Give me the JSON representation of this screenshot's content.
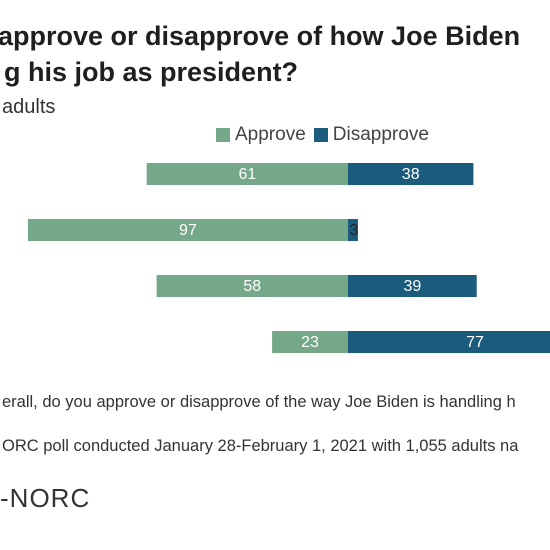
{
  "chart_data": {
    "type": "bar",
    "orientation": "horizontal-diverging",
    "title": "approve or disapprove of how Joe Biden g his job as president?",
    "title_lines": [
      "approve or disapprove of how Joe Biden",
      "g his job as president?"
    ],
    "subtitle": "adults",
    "categories": [
      "",
      "",
      "",
      ""
    ],
    "series": [
      {
        "name": "Approve",
        "color": "#74a888",
        "values": [
          61,
          97,
          58,
          23
        ]
      },
      {
        "name": "Disapprove",
        "color": "#1b5b7b",
        "values": [
          38,
          3,
          39,
          77
        ]
      }
    ],
    "xlim": [
      -100,
      100
    ],
    "grid": false,
    "legend": "top-right"
  },
  "notes": {
    "question": "erall, do you approve or disapprove of the way Joe Biden is handling h",
    "source": "ORC poll conducted January 28-February 1, 2021 with 1,055 adults na"
  },
  "logo": "NORC"
}
